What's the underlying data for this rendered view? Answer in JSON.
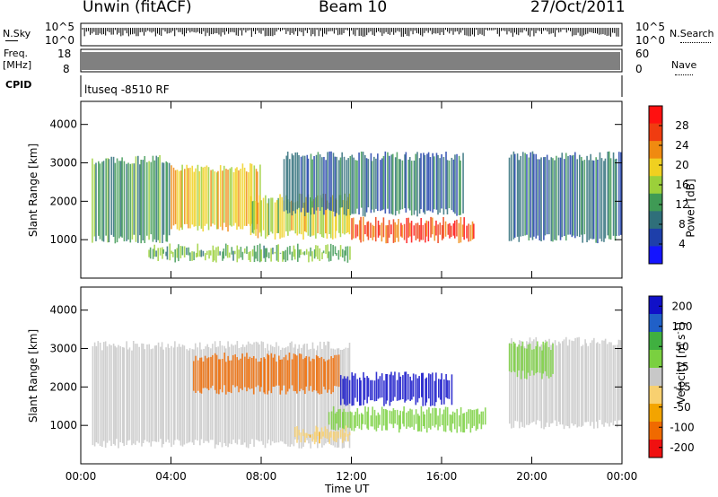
{
  "header": {
    "station": "Unwin (fitACF)",
    "beam": "Beam 10",
    "date": "27/Oct/2011"
  },
  "nsky_panel": {
    "left_label": "N.Sky",
    "right_label": "N.Search",
    "tick_top": "10^5",
    "tick_bottom": "10^0",
    "rtick_top": "10^5",
    "rtick_bottom": "10^0"
  },
  "freq_panel": {
    "left_label_1": "Freq.",
    "left_label_2": "[MHz]",
    "right_label": "Nave",
    "ltick_top": "18",
    "ltick_bottom": "8",
    "rtick_top": "60",
    "rtick_bottom": "0"
  },
  "cpid_panel": {
    "label": "CPID",
    "value": "ltuseq -8510 RF"
  },
  "colors": {
    "power_scale": [
      "#1414ff",
      "#1e3faa",
      "#2f6f7a",
      "#3f9a55",
      "#9bd03a",
      "#f0d020",
      "#f08a10",
      "#f03c10",
      "#ff1010"
    ],
    "velocity_scale": [
      "#f01010",
      "#f06a00",
      "#f3a400",
      "#f8d070",
      "#c8c8c8",
      "#7ad040",
      "#40b040",
      "#2060c8",
      "#1010c8"
    ]
  },
  "chart_data": [
    {
      "type": "heatmap",
      "panel": "power",
      "xlabel": "",
      "ylabel": "Slant Range [km]",
      "ylim": [
        0,
        4600
      ],
      "yticks": [
        "1000",
        "2000",
        "3000",
        "4000"
      ],
      "xlim": [
        0,
        24
      ],
      "colorbar": {
        "label": "Power [dB]",
        "ticks": [
          "4",
          "8",
          "12",
          "16",
          "20",
          "24",
          "28"
        ],
        "range": [
          0,
          32
        ]
      },
      "regions": [
        {
          "t0": 0.5,
          "t1": 4.0,
          "r0": 900,
          "r1": 3200,
          "value": 12
        },
        {
          "t0": 4.0,
          "t1": 8.0,
          "r0": 1200,
          "r1": 3000,
          "value": 20
        },
        {
          "t0": 7.5,
          "t1": 12.0,
          "r0": 1000,
          "r1": 2200,
          "value": 18
        },
        {
          "t0": 12.0,
          "t1": 17.5,
          "r0": 900,
          "r1": 1600,
          "value": 26
        },
        {
          "t0": 9.0,
          "t1": 17.0,
          "r0": 1600,
          "r1": 3300,
          "value": 8
        },
        {
          "t0": 19.0,
          "t1": 24.0,
          "r0": 900,
          "r1": 3300,
          "value": 8
        },
        {
          "t0": 3.0,
          "t1": 12.0,
          "r0": 400,
          "r1": 900,
          "value": 14
        }
      ]
    },
    {
      "type": "heatmap",
      "panel": "velocity",
      "xlabel": "Time UT",
      "ylabel": "Slant Range [km]",
      "ylim": [
        0,
        4600
      ],
      "yticks": [
        "1000",
        "2000",
        "3000",
        "4000"
      ],
      "xlim": [
        0,
        24
      ],
      "xticks": [
        "00:00",
        "04:00",
        "08:00",
        "12:00",
        "16:00",
        "20:00",
        "00:00"
      ],
      "colorbar": {
        "label": "Velocity [m s^-1]",
        "ticks": [
          "200",
          "100",
          "50",
          "15",
          "-15",
          "-50",
          "-100",
          "-200"
        ],
        "range": [
          -250,
          250
        ]
      },
      "regions": [
        {
          "t0": 0.5,
          "t1": 12.0,
          "r0": 400,
          "r1": 3200,
          "value": 0
        },
        {
          "t0": 5.0,
          "t1": 11.5,
          "r0": 1800,
          "r1": 2900,
          "value": -150
        },
        {
          "t0": 11.5,
          "t1": 16.5,
          "r0": 1500,
          "r1": 2400,
          "value": 200
        },
        {
          "t0": 11.0,
          "t1": 18.0,
          "r0": 800,
          "r1": 1500,
          "value": 60
        },
        {
          "t0": 9.5,
          "t1": 12.0,
          "r0": 500,
          "r1": 1000,
          "value": -80
        },
        {
          "t0": 19.0,
          "t1": 24.0,
          "r0": 900,
          "r1": 3300,
          "value": 0
        },
        {
          "t0": 19.0,
          "t1": 21.0,
          "r0": 2200,
          "r1": 3200,
          "value": 40
        }
      ]
    }
  ]
}
